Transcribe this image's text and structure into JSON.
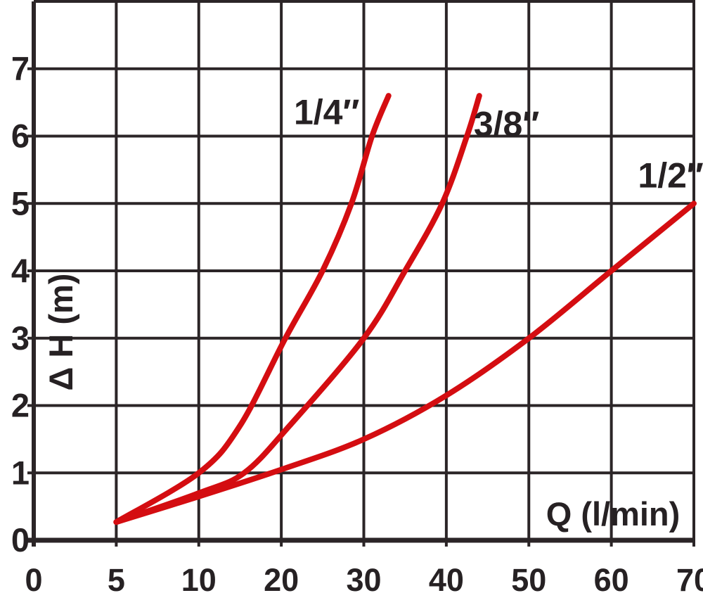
{
  "chart_data": {
    "type": "line",
    "title": "",
    "xlabel": "Q (l/min)",
    "ylabel": "Δ H (m)",
    "x_tick_labels": [
      "0",
      "5",
      "10",
      "20",
      "30",
      "40",
      "50",
      "60",
      "70"
    ],
    "x_tick_values": [
      0,
      5,
      10,
      20,
      30,
      40,
      50,
      60,
      70
    ],
    "x_scale_note": "non-linear axis: each division = 5 l/min up to 10, then 10 l/min per division",
    "y_tick_labels": [
      "0",
      "1",
      "2",
      "3",
      "4",
      "5",
      "6",
      "7"
    ],
    "y_tick_values": [
      0,
      1,
      2,
      3,
      4,
      5,
      6,
      7
    ],
    "ylim": [
      0,
      8
    ],
    "xlim_divisions": [
      0,
      8
    ],
    "grid": true,
    "legend_position": "labels-on-curves",
    "series": [
      {
        "name": "1/4\"",
        "label": "1/4″",
        "points": [
          [
            5,
            0.27
          ],
          [
            10,
            1.0
          ],
          [
            15,
            1.7
          ],
          [
            20.5,
            3.0
          ],
          [
            25,
            4.0
          ],
          [
            28.5,
            5.0
          ],
          [
            31,
            6.0
          ],
          [
            33,
            6.6
          ]
        ],
        "label_anchor": [
          25.5,
          6.18
        ]
      },
      {
        "name": "3/8\"",
        "label": "3/8″",
        "points": [
          [
            5,
            0.27
          ],
          [
            10,
            0.7
          ],
          [
            15.5,
            1.0
          ],
          [
            21,
            1.7
          ],
          [
            30,
            3.0
          ],
          [
            35,
            4.0
          ],
          [
            39.5,
            5.0
          ],
          [
            42.5,
            6.0
          ],
          [
            44,
            6.6
          ]
        ],
        "label_anchor": [
          47.3,
          6.0
        ]
      },
      {
        "name": "1/2\"",
        "label": "1/2″",
        "points": [
          [
            5,
            0.27
          ],
          [
            10,
            0.65
          ],
          [
            20,
            1.05
          ],
          [
            30,
            1.5
          ],
          [
            40,
            2.15
          ],
          [
            50,
            3.0
          ],
          [
            60,
            4.0
          ],
          [
            70,
            5.0
          ]
        ],
        "label_anchor": [
          67.2,
          5.24
        ]
      }
    ],
    "colors": {
      "curve": "#d40d11",
      "grid": "#2b2527",
      "text": "#262123",
      "background": "#ffffff"
    }
  }
}
